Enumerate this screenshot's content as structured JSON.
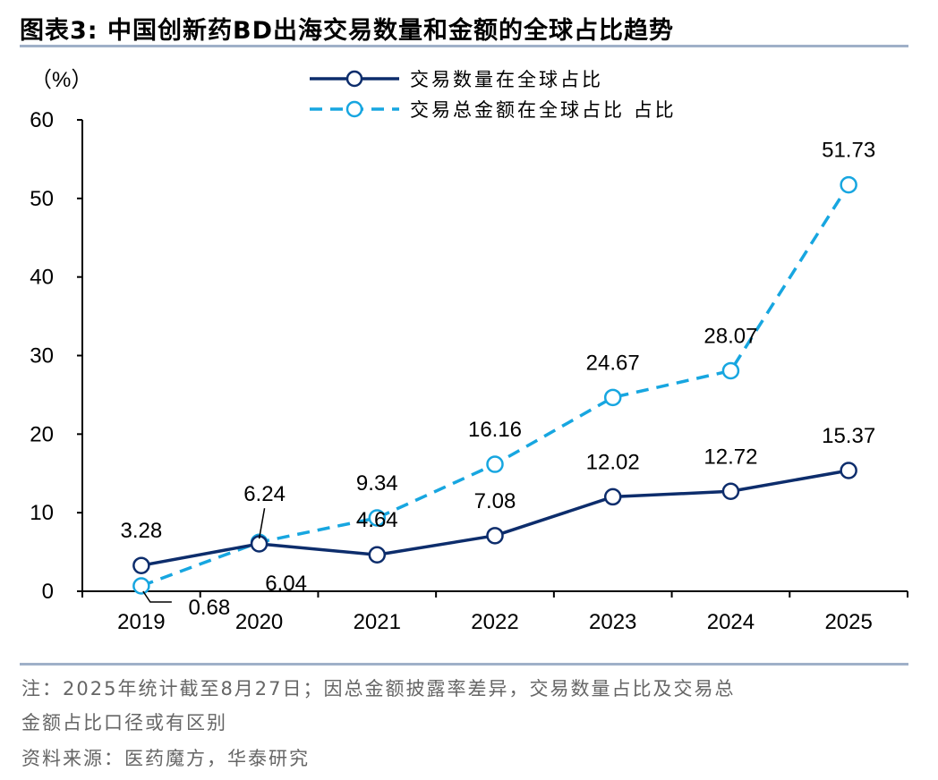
{
  "header": {
    "title": "图表3:  中国创新药BD出海交易数量和金额的全球占比趋势"
  },
  "chart_data": {
    "type": "line",
    "title": "中国创新药BD出海交易数量和金额的全球占比趋势",
    "ylabel": "（%）",
    "xlabel": "",
    "ylim": [
      0,
      60
    ],
    "yticks": [
      "0",
      "10",
      "20",
      "30",
      "40",
      "50",
      "60"
    ],
    "categories": [
      "2019",
      "2020",
      "2021",
      "2022",
      "2023",
      "2024",
      "2025"
    ],
    "series": [
      {
        "name": "交易数量在全球占比",
        "style": "solid",
        "color": "#0d2d6c",
        "values": [
          3.28,
          6.04,
          4.64,
          7.08,
          12.02,
          12.72,
          15.37
        ],
        "labels": [
          "3.28",
          "6.04",
          "4.64",
          "7.08",
          "12.02",
          "12.72",
          "15.37"
        ]
      },
      {
        "name": "交易总金额在全球占比 占比",
        "style": "dashed",
        "color": "#17a6e0",
        "values": [
          0.68,
          6.24,
          9.34,
          16.16,
          24.67,
          28.07,
          51.73
        ],
        "labels": [
          "0.68",
          "6.24",
          "9.34",
          "16.16",
          "24.67",
          "28.07",
          "51.73"
        ]
      }
    ],
    "legend": "top-center",
    "grid": false
  },
  "notes": {
    "line1": "注：2025年统计截至8月27日；因总金额披露率差异，交易数量占比及交易总",
    "line2": "金额占比口径或有区别",
    "source": "资料来源：医药魔方，华泰研究"
  }
}
